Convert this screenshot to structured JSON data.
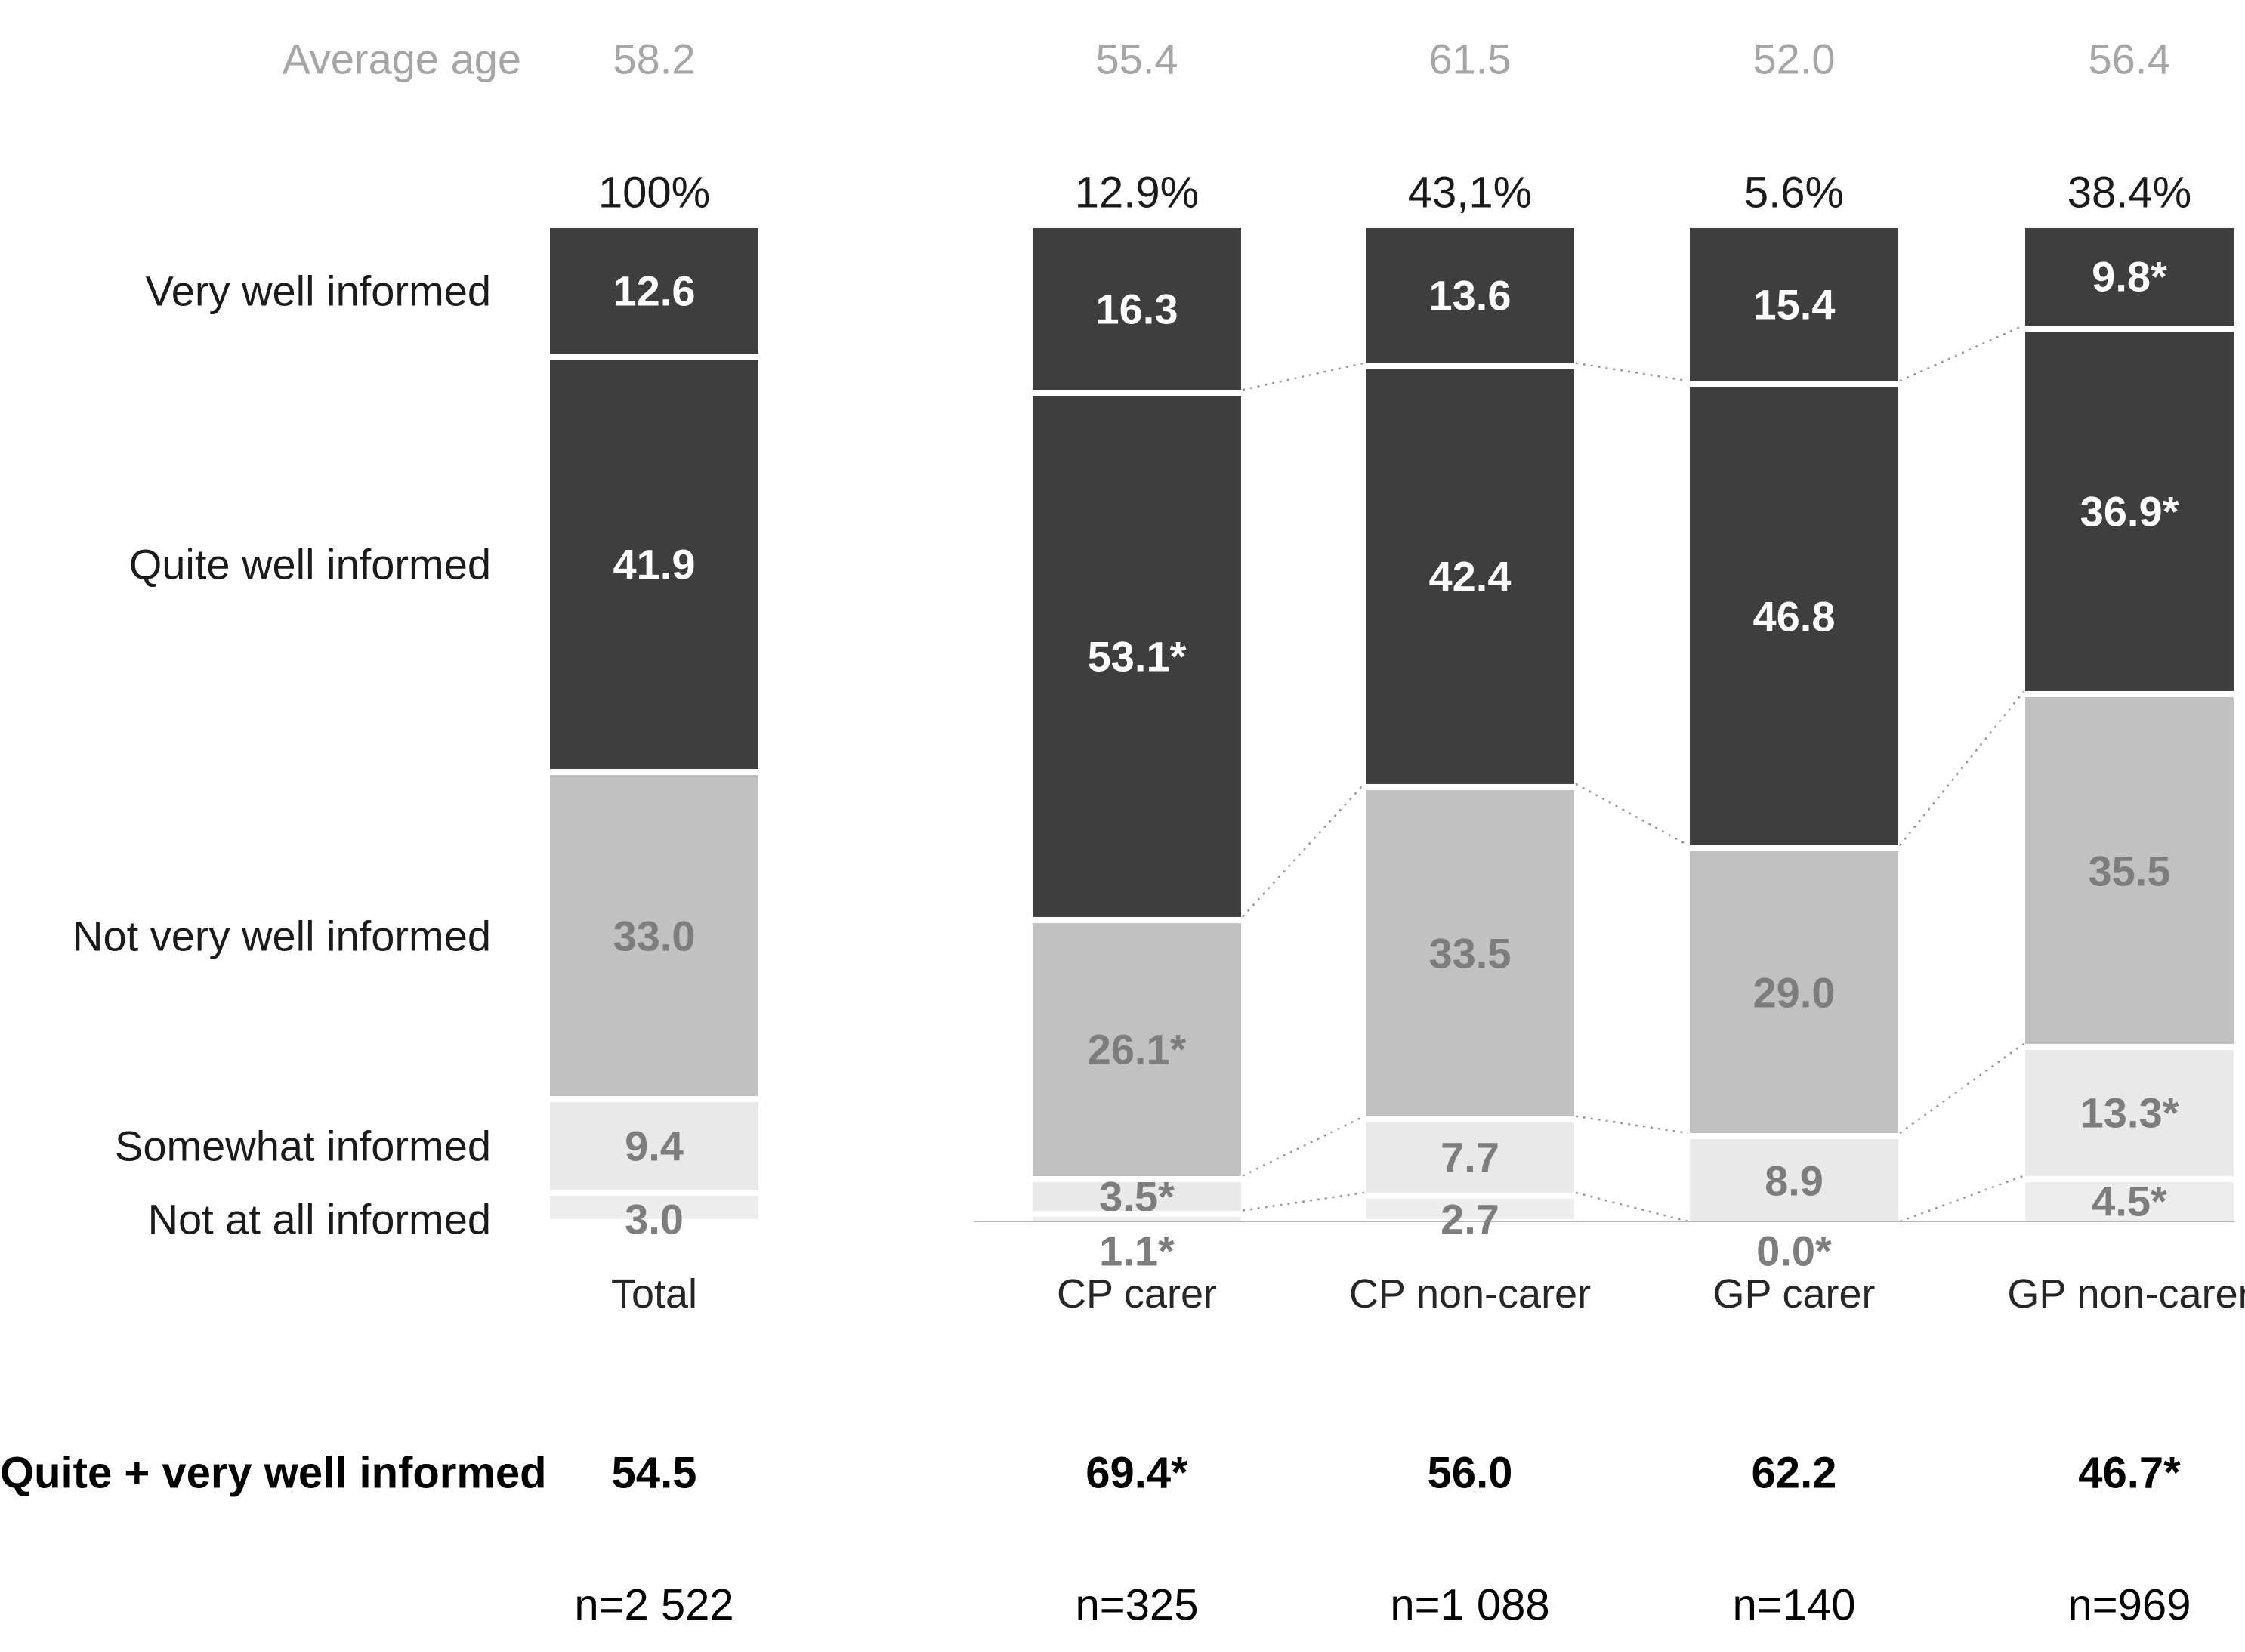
{
  "header": {
    "average_age_label": "Average age"
  },
  "summary_row": {
    "label": "Quite + very well informed"
  },
  "chart_data": {
    "type": "bar",
    "stacked": true,
    "orientation": "vertical",
    "unit": "percent",
    "ylim": [
      0,
      100
    ],
    "grid": false,
    "categories": [
      "Very well informed",
      "Quite well informed",
      "Not very well informed",
      "Somewhat informed",
      "Not at all informed"
    ],
    "groups": [
      "Total",
      "CP carer",
      "CP non-carer",
      "GP carer",
      "GP non-carer"
    ],
    "series": [
      {
        "name": "Very well informed",
        "values": [
          12.6,
          16.3,
          13.6,
          15.4,
          9.8
        ]
      },
      {
        "name": "Quite well informed",
        "values": [
          41.9,
          53.1,
          42.4,
          46.8,
          36.9
        ]
      },
      {
        "name": "Not very well informed",
        "values": [
          33.0,
          26.1,
          33.5,
          29.0,
          35.5
        ]
      },
      {
        "name": "Somewhat informed",
        "values": [
          9.4,
          3.5,
          7.7,
          8.9,
          13.3
        ]
      },
      {
        "name": "Not at all informed",
        "values": [
          3.0,
          1.1,
          2.7,
          0.0,
          4.5
        ]
      }
    ],
    "segment_value_labels": [
      [
        "12.6",
        "41.9",
        "33.0",
        "9.4",
        "3.0"
      ],
      [
        "16.3",
        "53.1*",
        "26.1*",
        "3.5*",
        "1.1*"
      ],
      [
        "13.6",
        "42.4",
        "33.5",
        "7.7",
        "2.7"
      ],
      [
        "15.4",
        "46.8",
        "29.0",
        "8.9",
        "0.0*"
      ],
      [
        "9.8*",
        "36.9*",
        "35.5",
        "13.3*",
        "4.5*"
      ]
    ],
    "segment_label_placement": [
      [
        "in",
        "in",
        "in",
        "in",
        "edge"
      ],
      [
        "in",
        "in",
        "in",
        "in",
        "below"
      ],
      [
        "in",
        "in",
        "in",
        "in",
        "edge"
      ],
      [
        "in",
        "in",
        "in",
        "in",
        "below"
      ],
      [
        "in",
        "in",
        "in",
        "in",
        "in"
      ]
    ],
    "column_percent_labels": [
      "100%",
      "12.9%",
      "43,1%",
      "5.6%",
      "38.4%"
    ],
    "average_age": [
      "58.2",
      "55.4",
      "61.5",
      "52.0",
      "56.4"
    ],
    "quite_plus_very_well_informed": [
      "54.5",
      "69.4*",
      "56.0",
      "62.2",
      "46.7*"
    ],
    "sample_sizes": [
      "n=2 522",
      "n=325",
      "n=1 088",
      "n=140",
      "n=969"
    ],
    "legend_position": "left-row-labels"
  },
  "colors": {
    "segment_fills": [
      "#3e3e3e",
      "#3e3e3e",
      "#c1c1c1",
      "#e9e9e9",
      "#ededed"
    ],
    "segment_label_colors": [
      "#ffffff",
      "#ffffff",
      "#7d7d7d",
      "#7d7d7d",
      "#7d7d7d"
    ],
    "header_gray": "#a6a6a6",
    "text_black": "#1a1a1a",
    "connector": "#999999",
    "baseline": "#b5b5b5",
    "background": "#ffffff"
  }
}
